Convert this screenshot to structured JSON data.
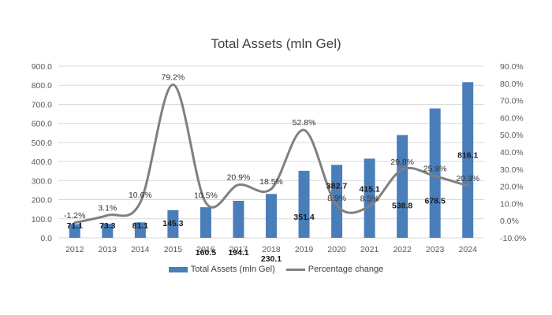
{
  "chart_data": {
    "type": "bar",
    "title": "Total Assets (mln Gel)",
    "categories": [
      "2012",
      "2013",
      "2014",
      "2015",
      "2016",
      "2017",
      "2018",
      "2019",
      "2020",
      "2021",
      "2022",
      "2023",
      "2024"
    ],
    "series": [
      {
        "name": "Total Assets (mln Gel)",
        "type": "bar",
        "axis": "left",
        "color": "#4a7ebb",
        "values": [
          71.1,
          73.3,
          81.1,
          145.3,
          160.5,
          194.1,
          230.1,
          351.4,
          382.7,
          415.1,
          538.8,
          678.5,
          816.1
        ],
        "labels": [
          "71.1",
          "73.3",
          "81.1",
          "145.3",
          "160.5",
          "194.1",
          "230.1",
          "351.4",
          "382.7",
          "415.1",
          "538.8",
          "678.5",
          "816.1"
        ]
      },
      {
        "name": "Percentage change",
        "type": "line",
        "smooth": true,
        "axis": "right",
        "color": "#808080",
        "values": [
          -1.2,
          3.1,
          10.6,
          79.2,
          10.5,
          20.9,
          18.5,
          52.8,
          8.9,
          8.5,
          29.8,
          25.9,
          20.3
        ],
        "labels": [
          "-1.2%",
          "3.1%",
          "10.6%",
          "79.2%",
          "10.5%",
          "20.9%",
          "18.5%",
          "52.8%",
          "8.9%",
          "8.5%",
          "29.8%",
          "25.9%",
          "20.3%"
        ]
      }
    ],
    "y_left": {
      "min": 0,
      "max": 900,
      "step": 100,
      "tick_labels": [
        "0.0",
        "100.0",
        "200.0",
        "300.0",
        "400.0",
        "500.0",
        "600.0",
        "700.0",
        "800.0",
        "900.0"
      ]
    },
    "y_right": {
      "min": -10,
      "max": 90,
      "step": 10,
      "tick_labels": [
        "-10.0%",
        "0.0%",
        "10.0%",
        "20.0%",
        "30.0%",
        "40.0%",
        "50.0%",
        "60.0%",
        "70.0%",
        "80.0%",
        "90.0%"
      ]
    },
    "grid": true,
    "legend_position": "bottom",
    "grid_color": "#d9d9d9"
  }
}
